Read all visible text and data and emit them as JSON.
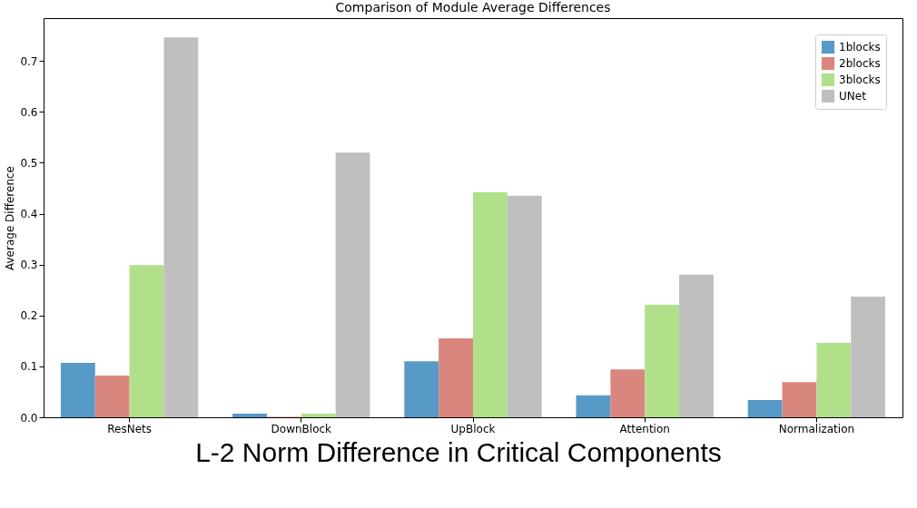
{
  "chart_data": {
    "type": "bar",
    "title": "Comparison of Module Average Differences",
    "ylabel": "Average Difference",
    "annotations": [
      "L-2 Norm Difference in Critical Components"
    ],
    "categories": [
      "ResNets",
      "DownBlock",
      "UpBlock",
      "Attention",
      "Normalization"
    ],
    "series": [
      {
        "name": "1blocks",
        "color": "#5799c7",
        "values": [
          0.107,
          0.007,
          0.11,
          0.043,
          0.034
        ]
      },
      {
        "name": "2blocks",
        "color": "#d9877e",
        "values": [
          0.082,
          0.001,
          0.155,
          0.094,
          0.069
        ]
      },
      {
        "name": "3blocks",
        "color": "#b2df8a",
        "values": [
          0.299,
          0.007,
          0.442,
          0.221,
          0.146
        ]
      },
      {
        "name": "UNet",
        "color": "#bfbfbf",
        "values": [
          0.746,
          0.52,
          0.435,
          0.28,
          0.237
        ]
      }
    ],
    "ylim": [
      0,
      0.784
    ],
    "yticks": [
      {
        "value": 0,
        "label": "0.0"
      },
      0.1,
      0.2,
      0.3,
      0.4,
      0.5,
      0.6,
      0.7
    ],
    "grid": false,
    "legend": "top right"
  }
}
